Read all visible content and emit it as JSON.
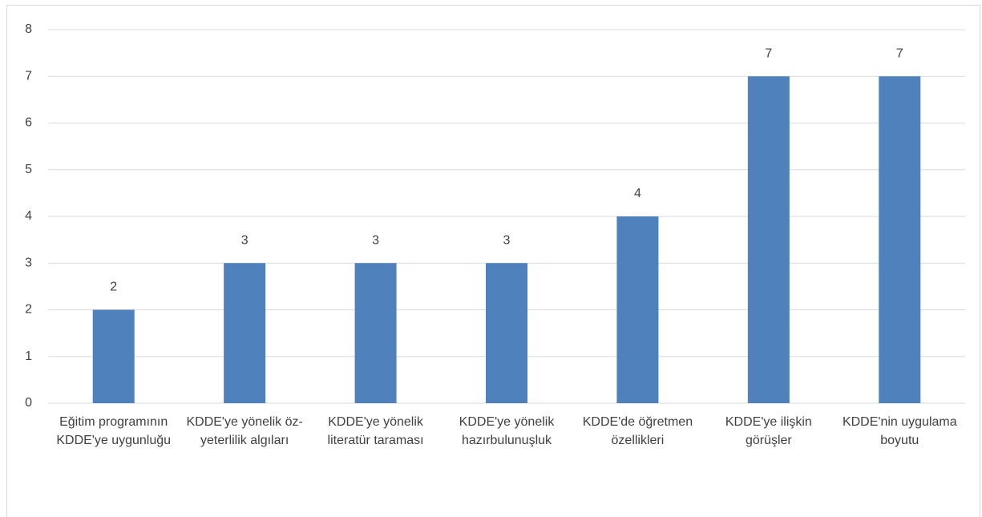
{
  "chart_data": {
    "type": "bar",
    "categories": [
      "Eğitim programının KDDE'ye uygunluğu",
      "KDDE'ye yönelik öz-yeterlilik algıları",
      "KDDE'ye yönelik literatür taraması",
      "KDDE'ye yönelik hazırbulunuşluk",
      "KDDE'de öğretmen özellikleri",
      "KDDE'ye ilişkin görüşler",
      "KDDE'nin uygulama boyutu"
    ],
    "values": [
      2,
      3,
      3,
      3,
      4,
      7,
      7
    ],
    "color": "#4f81bd",
    "ylim": [
      0,
      8
    ],
    "yticks": [
      0,
      1,
      2,
      3,
      4,
      5,
      6,
      7,
      8
    ],
    "grid": true,
    "data_labels": true
  }
}
